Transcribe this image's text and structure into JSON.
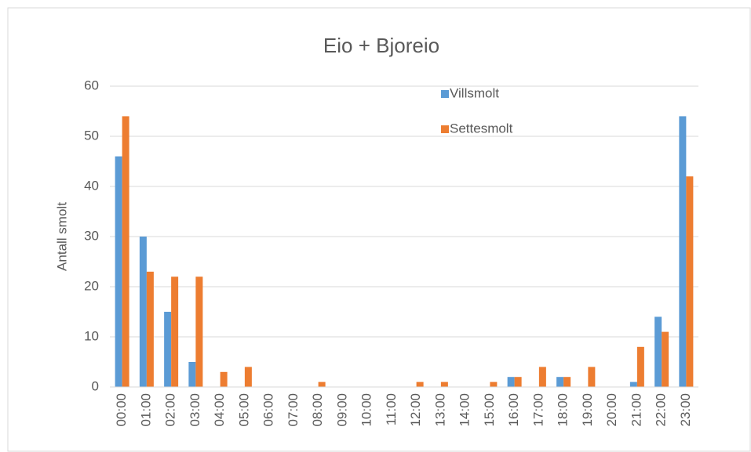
{
  "chart_data": {
    "type": "bar",
    "title": "Eio + Bjoreio",
    "y_label": "Antall smolt",
    "categories": [
      "00:00",
      "01:00",
      "02:00",
      "03:00",
      "04:00",
      "05:00",
      "06:00",
      "07:00",
      "08:00",
      "09:00",
      "10:00",
      "11:00",
      "12:00",
      "13:00",
      "14:00",
      "15:00",
      "16:00",
      "17:00",
      "18:00",
      "19:00",
      "20:00",
      "21:00",
      "22:00",
      "23:00"
    ],
    "series": [
      {
        "name": "Villsmolt",
        "color": "#5b9bd5",
        "values": [
          46,
          30,
          15,
          5,
          0,
          0,
          0,
          0,
          0,
          0,
          0,
          0,
          0,
          0,
          0,
          0,
          2,
          0,
          2,
          0,
          0,
          1,
          14,
          54
        ]
      },
      {
        "name": "Settesmolt",
        "color": "#ed7d31",
        "values": [
          54,
          23,
          22,
          22,
          3,
          4,
          0,
          0,
          1,
          0,
          0,
          0,
          1,
          1,
          0,
          1,
          2,
          4,
          2,
          4,
          0,
          8,
          11,
          42
        ]
      }
    ],
    "ylim": [
      0,
      60
    ],
    "yticks": [
      0,
      10,
      20,
      30,
      40,
      50,
      60
    ],
    "grid": true
  }
}
